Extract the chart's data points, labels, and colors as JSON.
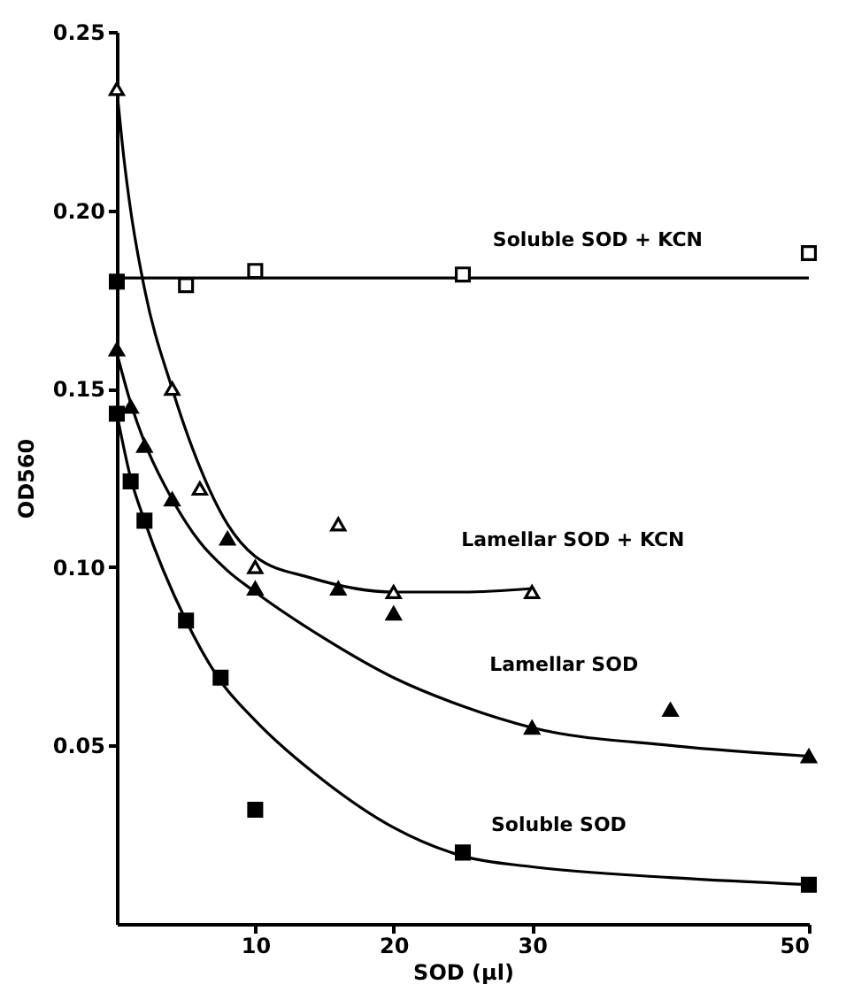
{
  "chart_data": {
    "type": "scatter",
    "xlabel": "SOD (µl)",
    "ylabel": "OD560",
    "xlim": [
      0,
      50
    ],
    "ylim": [
      0,
      0.25
    ],
    "xticks": [
      10,
      20,
      30,
      50
    ],
    "yticks": [
      0.05,
      {
        "value": 0.1,
        "label": "0.10"
      },
      0.15,
      {
        "value": 0.2,
        "label": "0.20"
      },
      0.25
    ],
    "grid": false,
    "series": [
      {
        "type": "line",
        "name": "Soluble SOD + KCN",
        "marker": "none",
        "color": "#000000",
        "x": [
          0,
          50
        ],
        "values": [
          0.181,
          0.181
        ]
      },
      {
        "type": "line",
        "name": "Lamellar SOD + KCN",
        "marker": "none",
        "color": "#000000",
        "x": [
          0,
          0.5,
          1,
          2,
          4,
          6,
          8,
          10,
          14,
          20,
          25,
          30
        ],
        "values": [
          0.234,
          0.215,
          0.2,
          0.178,
          0.15,
          0.128,
          0.112,
          0.103,
          0.097,
          0.093,
          0.093,
          0.094
        ]
      },
      {
        "type": "line",
        "name": "Lamellar SOD",
        "marker": "none",
        "color": "#000000",
        "x": [
          0,
          1,
          2,
          4,
          6,
          8,
          10,
          15,
          20,
          25,
          30,
          40,
          50
        ],
        "values": [
          0.16,
          0.146,
          0.135,
          0.119,
          0.107,
          0.099,
          0.093,
          0.08,
          0.069,
          0.061,
          0.055,
          0.05,
          0.047
        ]
      },
      {
        "type": "line",
        "name": "Soluble SOD",
        "marker": "none",
        "color": "#000000",
        "x": [
          0,
          1,
          2,
          5,
          7.5,
          10,
          15,
          20,
          25,
          30,
          40,
          50
        ],
        "values": [
          0.143,
          0.125,
          0.113,
          0.085,
          0.068,
          0.057,
          0.04,
          0.027,
          0.019,
          0.016,
          0.013,
          0.011
        ]
      },
      {
        "marker": "square",
        "color": "#ffffff",
        "x": [
          5,
          10,
          25,
          50
        ],
        "values": [
          0.179,
          0.183,
          0.182,
          0.188
        ]
      },
      {
        "marker": "square",
        "color": "#000000",
        "x": [
          0
        ],
        "values": [
          0.18
        ]
      },
      {
        "marker": "triangle",
        "color": "#ffffff",
        "x": [
          0,
          4,
          6,
          10,
          16,
          20,
          30
        ],
        "values": [
          0.234,
          0.15,
          0.122,
          0.1,
          0.112,
          0.093,
          0.093
        ]
      },
      {
        "marker": "triangle",
        "color": "#000000",
        "x": [
          0,
          1,
          2,
          4,
          8,
          10,
          16,
          20,
          30,
          40,
          50
        ],
        "values": [
          0.161,
          0.145,
          0.134,
          0.119,
          0.108,
          0.094,
          0.094,
          0.087,
          0.055,
          0.06,
          0.047
        ]
      },
      {
        "marker": "square",
        "color": "#000000",
        "x": [
          0,
          1,
          2,
          5,
          7.5,
          10,
          25,
          50
        ],
        "values": [
          0.143,
          0.124,
          0.113,
          0.085,
          0.069,
          0.032,
          0.02,
          0.011
        ]
      }
    ]
  }
}
